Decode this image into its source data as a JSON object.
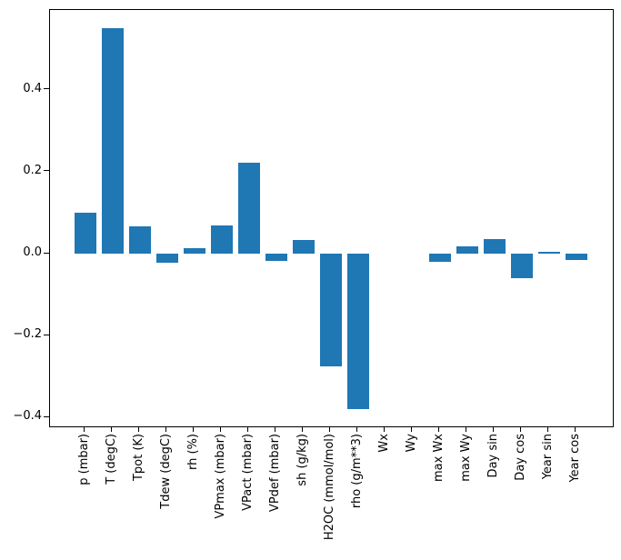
{
  "figure": {
    "background_color": "#ffffff",
    "bar_color": "#1f77b4",
    "spine_color": "#000000",
    "tick_label_color": "#000000"
  },
  "chart_data": {
    "type": "bar",
    "title": "",
    "xlabel": "",
    "ylabel": "",
    "categories": [
      "p (mbar)",
      "T (degC)",
      "Tpot (K)",
      "Tdew (degC)",
      "rh (%)",
      "VPmax (mbar)",
      "VPact (mbar)",
      "VPdef (mbar)",
      "sh (g/kg)",
      "H2OC (mmol/mol)",
      "rho (g/m**3)",
      "Wx",
      "Wy",
      "max Wx",
      "max Wy",
      "Day sin",
      "Day cos",
      "Year sin",
      "Year cos"
    ],
    "values": [
      0.1,
      0.549,
      0.066,
      -0.022,
      0.013,
      0.068,
      0.221,
      -0.018,
      0.034,
      -0.275,
      -0.379,
      0.0,
      0.0,
      -0.02,
      0.018,
      0.035,
      -0.059,
      0.004,
      -0.015
    ],
    "y_ticks": [
      0.4,
      0.2,
      0.0,
      -0.2,
      -0.4
    ],
    "y_tick_labels": [
      "0.4",
      "0.2",
      "0.0",
      "−0.2",
      "−0.4"
    ],
    "ylim": [
      -0.42,
      0.59
    ],
    "x_tick_rotation": 90,
    "grid": false,
    "legend": "none",
    "bar_width_fraction": 0.8
  }
}
